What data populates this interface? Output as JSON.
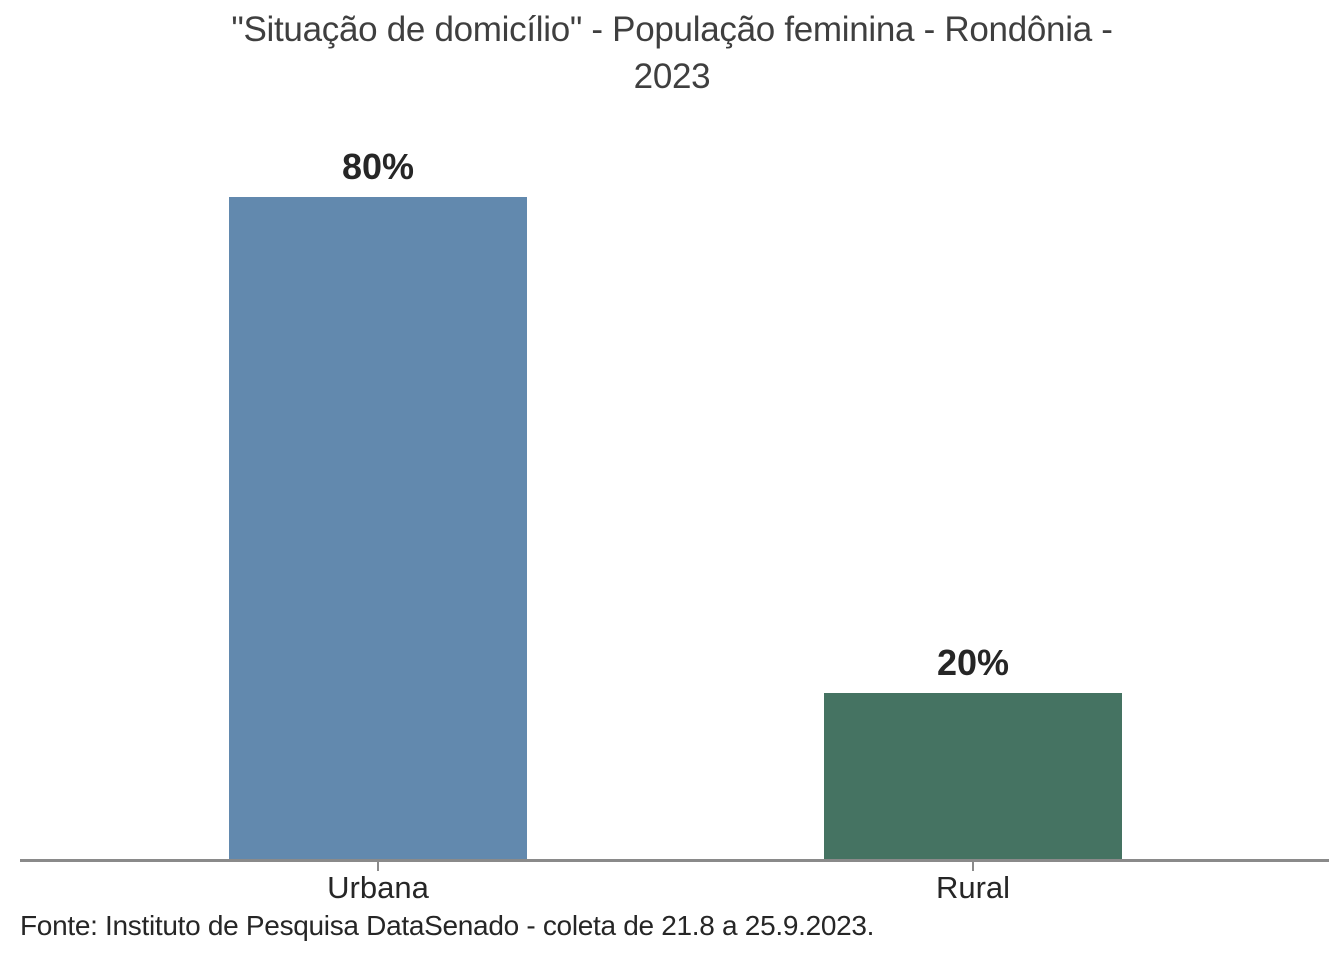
{
  "title": {
    "lines": [
      "\"Situação de domicílio\" - População feminina - Rondônia -",
      "2023"
    ]
  },
  "footer": {
    "source": "Fonte: Instituto de Pesquisa DataSenado - coleta de 21.8 a 25.9.2023."
  },
  "chart_data": {
    "type": "bar",
    "title": "\"Situação de domicílio\" - População feminina - Rondônia - 2023",
    "categories": [
      "Urbana",
      "Rural"
    ],
    "values": [
      80,
      20
    ],
    "value_labels": [
      "80%",
      "20%"
    ],
    "series_colors": [
      "#6289AE",
      "#457362"
    ],
    "xlabel": "",
    "ylabel": "",
    "ylim": [
      0,
      100
    ],
    "grid": false,
    "legend": "none",
    "source": "Fonte: Instituto de Pesquisa DataSenado - coleta de 21.8 a 25.9.2023."
  },
  "colors": {
    "bar_urbana": "#6289AE",
    "bar_rural": "#457362",
    "axis_line": "#8A8A8A",
    "title_text": "#3F3F3F",
    "label_text": "#262626",
    "background": "#FFFFFF"
  }
}
